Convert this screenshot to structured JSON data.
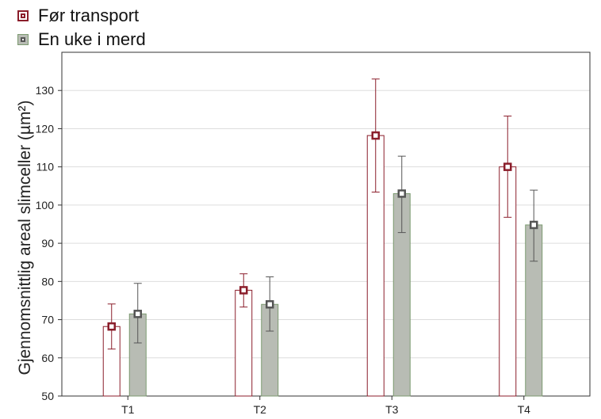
{
  "chart_data": {
    "type": "bar",
    "categories": [
      "T1",
      "T2",
      "T3",
      "T4"
    ],
    "series": [
      {
        "name": "Før transport",
        "values": [
          68.2,
          77.7,
          118.2,
          110.0
        ],
        "err_low": [
          62.3,
          73.3,
          103.4,
          96.8
        ],
        "err_high": [
          74.1,
          82.0,
          133.0,
          123.3
        ],
        "fill": "#ffffff",
        "stroke": "#8b1e2b",
        "marker": "#8b1e2b"
      },
      {
        "name": "En uke i merd",
        "values": [
          71.5,
          74.0,
          103.0,
          94.8
        ],
        "err_low": [
          63.9,
          67.0,
          92.8,
          85.3
        ],
        "err_high": [
          79.5,
          81.2,
          112.8,
          103.9
        ],
        "fill": "#b8bcb4",
        "stroke": "#7c9a70",
        "marker": "#555555"
      }
    ],
    "ylabel": "Gjennomsnittlig areal slimceller (µm²)",
    "xlabel": "",
    "ylim": [
      50,
      140
    ],
    "yticks": [
      50,
      60,
      70,
      80,
      90,
      100,
      110,
      120,
      130
    ],
    "grid": true,
    "legend_position": "top-left"
  }
}
